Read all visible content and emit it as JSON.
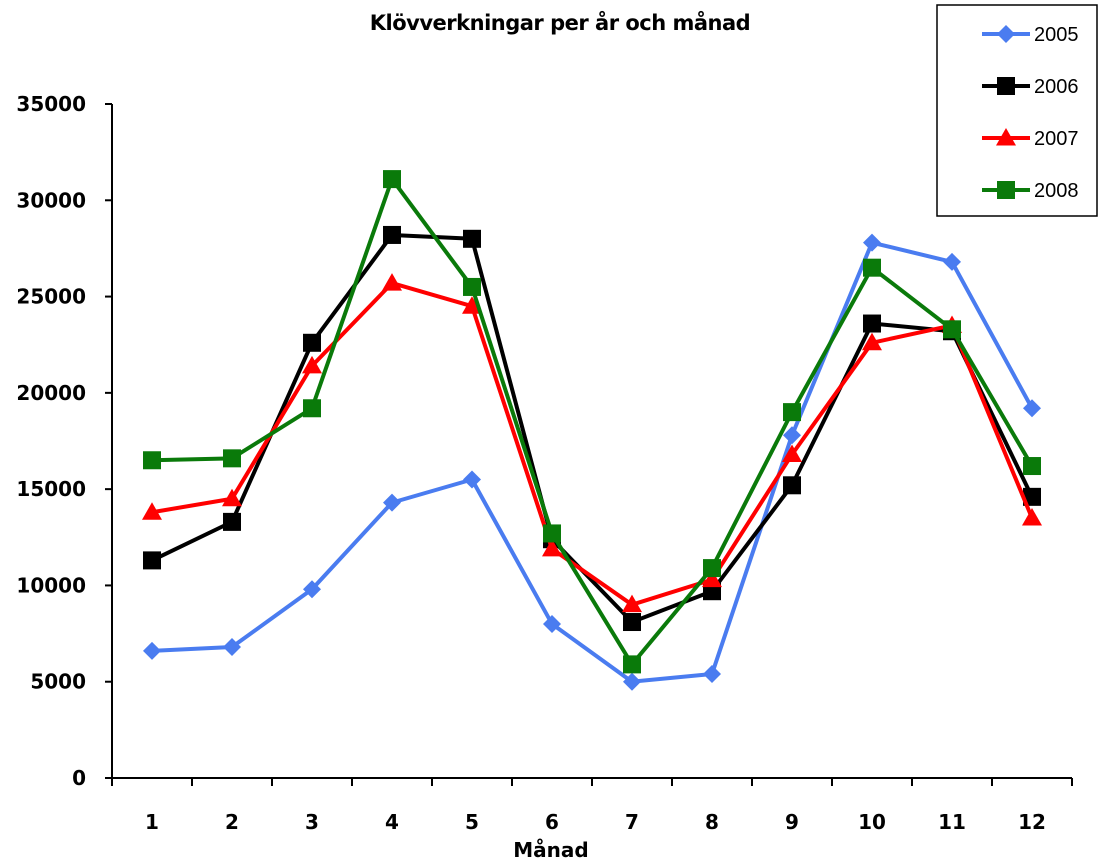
{
  "chart_data": {
    "type": "line",
    "title": "Klövverkningar per år och månad",
    "xlabel": "Månad",
    "ylabel": "",
    "categories": [
      "1",
      "2",
      "3",
      "4",
      "5",
      "6",
      "7",
      "8",
      "9",
      "10",
      "11",
      "12"
    ],
    "ylim": [
      0,
      35000
    ],
    "yticks": [
      0,
      5000,
      10000,
      15000,
      20000,
      25000,
      30000,
      35000
    ],
    "grid": false,
    "legend_position": "top-right",
    "series": [
      {
        "name": "2005",
        "color": "#4a7cf0",
        "marker": "diamond",
        "values": [
          6600,
          6800,
          9800,
          14300,
          15500,
          8000,
          5000,
          5400,
          17800,
          27800,
          26800,
          19200
        ]
      },
      {
        "name": "2006",
        "color": "#000000",
        "marker": "square",
        "values": [
          11300,
          13300,
          22600,
          28200,
          28000,
          12400,
          8100,
          9700,
          15200,
          23600,
          23200,
          14600
        ]
      },
      {
        "name": "2007",
        "color": "#ff0000",
        "marker": "triangle",
        "values": [
          13800,
          14500,
          21400,
          25700,
          24500,
          11900,
          9000,
          10300,
          16800,
          22600,
          23500,
          13500
        ]
      },
      {
        "name": "2008",
        "color": "#0a7a0a",
        "marker": "square",
        "values": [
          16500,
          16600,
          19200,
          31100,
          25500,
          12700,
          5900,
          10900,
          19000,
          26500,
          23300,
          16200
        ]
      }
    ]
  }
}
